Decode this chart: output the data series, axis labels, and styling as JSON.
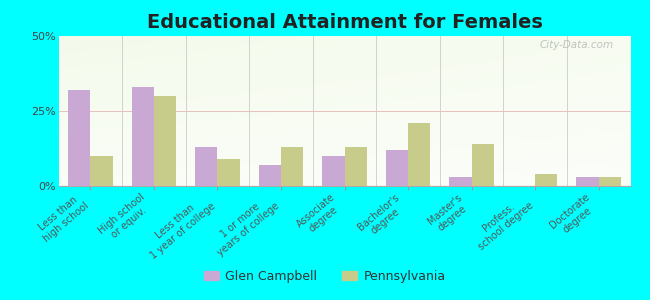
{
  "title": "Educational Attainment for Females",
  "categories": [
    "Less than\nhigh school",
    "High school\nor equiv.",
    "Less than\n1 year of college",
    "1 or more\nyears of college",
    "Associate\ndegree",
    "Bachelor's\ndegree",
    "Master's\ndegree",
    "Profess.\nschool degree",
    "Doctorate\ndegree"
  ],
  "glen_campbell": [
    32,
    33,
    13,
    7,
    10,
    12,
    3,
    0,
    3
  ],
  "pennsylvania": [
    10,
    30,
    9,
    13,
    13,
    21,
    14,
    4,
    3
  ],
  "gc_color": "#c9a8d4",
  "pa_color": "#c8cc8a",
  "ylim": [
    0,
    50
  ],
  "yticks": [
    0,
    25,
    50
  ],
  "ytick_labels": [
    "0%",
    "25%",
    "50%"
  ],
  "bar_width": 0.35,
  "title_fontsize": 14,
  "tick_fontsize": 7,
  "legend_labels": [
    "Glen Campbell",
    "Pennsylvania"
  ],
  "watermark": "City-Data.com",
  "bg_color": "#00ffff"
}
